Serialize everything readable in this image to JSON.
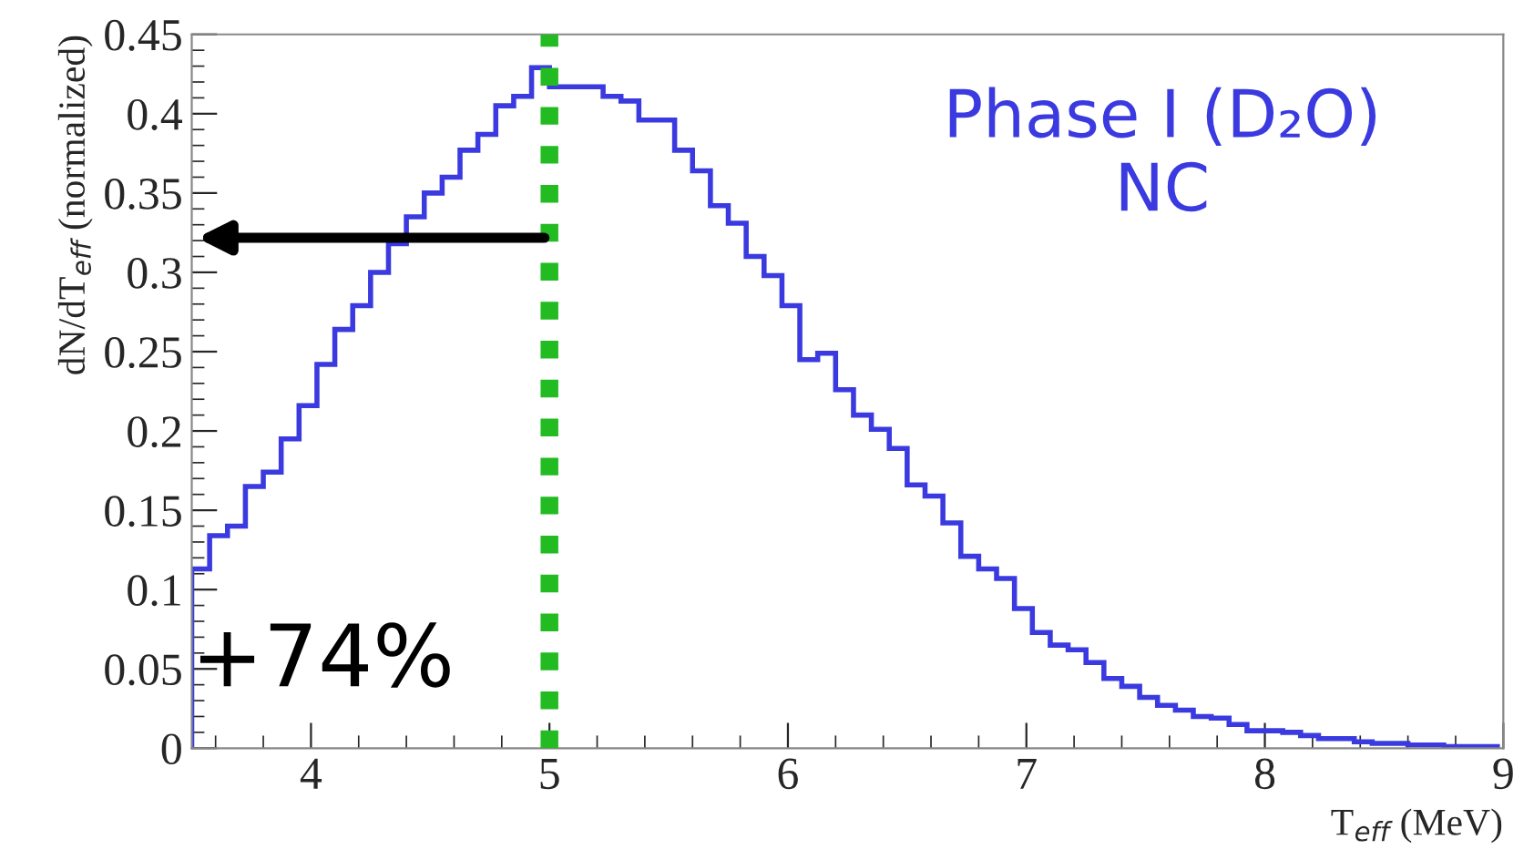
{
  "chart_data": {
    "type": "histogram",
    "bins": [
      3.5,
      3.575,
      3.65,
      3.725,
      3.8,
      3.875,
      3.95,
      4.025,
      4.1,
      4.175,
      4.25,
      4.325,
      4.4,
      4.475,
      4.55,
      4.625,
      4.7,
      4.775,
      4.85,
      4.925,
      5.0,
      5.075,
      5.15,
      5.225,
      5.3,
      5.375,
      5.45,
      5.525,
      5.6,
      5.675,
      5.75,
      5.825,
      5.9,
      5.975,
      6.05,
      6.125,
      6.2,
      6.275,
      6.35,
      6.425,
      6.5,
      6.575,
      6.65,
      6.725,
      6.8,
      6.875,
      6.95,
      7.025,
      7.1,
      7.175,
      7.25,
      7.325,
      7.4,
      7.475,
      7.55,
      7.625,
      7.7,
      7.775,
      7.85,
      7.925,
      8.0,
      8.075,
      8.15,
      8.225,
      8.3,
      8.375,
      8.45,
      8.525,
      8.6,
      8.675,
      8.75,
      8.825,
      8.9,
      8.975
    ],
    "values": [
      0.113,
      0.134,
      0.14,
      0.165,
      0.174,
      0.195,
      0.216,
      0.242,
      0.264,
      0.279,
      0.3,
      0.318,
      0.335,
      0.35,
      0.36,
      0.377,
      0.387,
      0.405,
      0.411,
      0.429,
      0.417,
      0.417,
      0.417,
      0.411,
      0.408,
      0.396,
      0.396,
      0.377,
      0.364,
      0.342,
      0.331,
      0.31,
      0.298,
      0.279,
      0.245,
      0.249,
      0.226,
      0.21,
      0.201,
      0.189,
      0.166,
      0.159,
      0.142,
      0.121,
      0.113,
      0.107,
      0.088,
      0.073,
      0.065,
      0.062,
      0.054,
      0.044,
      0.039,
      0.032,
      0.027,
      0.024,
      0.02,
      0.019,
      0.015,
      0.011,
      0.011,
      0.01,
      0.008,
      0.006,
      0.006,
      0.004,
      0.003,
      0.003,
      0.002,
      0.002,
      0.001,
      0.001,
      0.001
    ],
    "color": "#3a3ae0",
    "xlabel": "T$_{eff}$ (MeV)",
    "ylabel": "dN/dT$_{eff}$ (normalized)",
    "xlim": [
      3.5,
      9
    ],
    "ylim": [
      0,
      0.45
    ],
    "xticks": [
      4,
      5,
      6,
      7,
      8,
      9
    ],
    "yticks": [
      0,
      0.05,
      0.1,
      0.15,
      0.2,
      0.25,
      0.3,
      0.35,
      0.4,
      0.45
    ],
    "ref_lines": [
      {
        "axis": "x",
        "value": 5,
        "color": "#22bb22",
        "line_style": "dotted"
      }
    ],
    "annotations": [
      "Phase I (D₂O)\nNC",
      "+74%"
    ],
    "grid": false
  }
}
